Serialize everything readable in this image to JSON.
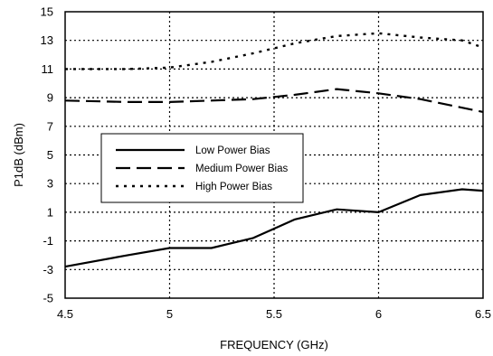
{
  "chart_data": {
    "type": "line",
    "xlabel": "FREQUENCY (GHz)",
    "ylabel": "P1dB (dBm)",
    "xlim": [
      4.5,
      6.5
    ],
    "ylim": [
      -5,
      15
    ],
    "xticks": [
      4.5,
      5,
      5.5,
      6,
      6.5
    ],
    "xtick_labels": [
      "4.5",
      "5",
      "5.5",
      "6",
      "6.5"
    ],
    "yticks": [
      -5,
      -3,
      -1,
      1,
      3,
      5,
      7,
      9,
      11,
      13,
      15
    ],
    "ytick_labels": [
      "-5",
      "-3",
      "-1",
      "1",
      "3",
      "5",
      "7",
      "9",
      "11",
      "13",
      "15"
    ],
    "grid": true,
    "legend_position": "center-left",
    "series": [
      {
        "name": "Low Power Bias",
        "style": "solid",
        "x": [
          4.5,
          4.8,
          5.0,
          5.2,
          5.4,
          5.6,
          5.8,
          6.0,
          6.2,
          6.4,
          6.5
        ],
        "y": [
          -2.8,
          -2.0,
          -1.5,
          -1.5,
          -0.8,
          0.5,
          1.2,
          1.0,
          2.2,
          2.6,
          2.5
        ]
      },
      {
        "name": "Medium Power Bias",
        "style": "dashed",
        "x": [
          4.5,
          4.8,
          5.0,
          5.2,
          5.4,
          5.6,
          5.8,
          6.0,
          6.2,
          6.4,
          6.5
        ],
        "y": [
          8.8,
          8.7,
          8.7,
          8.8,
          8.9,
          9.2,
          9.6,
          9.3,
          8.9,
          8.3,
          8.0
        ]
      },
      {
        "name": "High Power Bias",
        "style": "dotted",
        "x": [
          4.5,
          4.8,
          5.0,
          5.2,
          5.4,
          5.6,
          5.8,
          6.0,
          6.2,
          6.4,
          6.5
        ],
        "y": [
          11.0,
          11.0,
          11.1,
          11.5,
          12.1,
          12.8,
          13.3,
          13.5,
          13.2,
          13.0,
          12.5
        ]
      }
    ]
  }
}
